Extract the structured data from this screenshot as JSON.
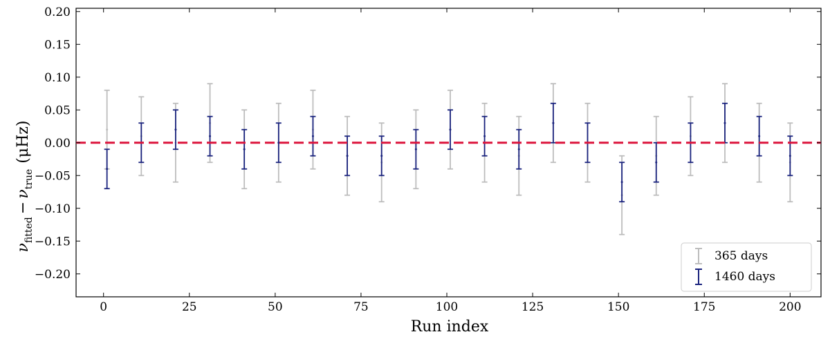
{
  "chart_data": {
    "type": "scatter",
    "title": "",
    "xlabel": "Run index",
    "ylabel": "ν_fitted − ν_true (μHz)",
    "ylabel_parts": {
      "sym": "ν",
      "sub1": "fitted",
      "minus": "−",
      "sub2": "true",
      "unit": "(μHz)"
    },
    "xlim": [
      -8,
      209
    ],
    "ylim": [
      -0.235,
      0.205
    ],
    "xticks": [
      0,
      25,
      50,
      75,
      100,
      125,
      150,
      175,
      200
    ],
    "xtick_labels": [
      "0",
      "25",
      "50",
      "75",
      "100",
      "125",
      "150",
      "175",
      "200"
    ],
    "yticks": [
      -0.2,
      -0.15,
      -0.1,
      -0.05,
      0.0,
      0.05,
      0.1,
      0.15,
      0.2
    ],
    "ytick_labels": [
      "−0.20",
      "−0.15",
      "−0.10",
      "−0.05",
      "0.00",
      "0.05",
      "0.10",
      "0.15",
      "0.20"
    ],
    "reference_line": {
      "y": 0.0,
      "color": "#dc143c",
      "style": "dashed"
    },
    "grid": false,
    "legend_position": "bottom-right",
    "series": [
      {
        "name": "365 days",
        "color": "#bdbdbd",
        "x": [
          1,
          11,
          21,
          31,
          41,
          51,
          61,
          71,
          81,
          91,
          101,
          111,
          121,
          131,
          141,
          151,
          161,
          171,
          181,
          191,
          200
        ],
        "y": [
          0.02,
          0.01,
          0.0,
          0.03,
          -0.01,
          0.0,
          0.02,
          -0.02,
          -0.03,
          -0.01,
          0.02,
          0.0,
          -0.02,
          0.03,
          0.0,
          -0.08,
          -0.02,
          0.01,
          0.03,
          0.0,
          -0.03
        ],
        "err": [
          0.06,
          0.06,
          0.06,
          0.06,
          0.06,
          0.06,
          0.06,
          0.06,
          0.06,
          0.06,
          0.06,
          0.06,
          0.06,
          0.06,
          0.06,
          0.06,
          0.06,
          0.06,
          0.06,
          0.06,
          0.06
        ]
      },
      {
        "name": "1460 days",
        "color": "#1a237e",
        "x": [
          1,
          11,
          21,
          31,
          41,
          51,
          61,
          71,
          81,
          91,
          101,
          111,
          121,
          131,
          141,
          151,
          161,
          171,
          181,
          191,
          200
        ],
        "y": [
          -0.04,
          0.0,
          0.02,
          0.01,
          -0.01,
          0.0,
          0.01,
          -0.02,
          -0.02,
          -0.01,
          0.02,
          0.01,
          -0.01,
          0.03,
          0.0,
          -0.06,
          -0.03,
          0.0,
          0.03,
          0.01,
          -0.02
        ],
        "err": [
          0.03,
          0.03,
          0.03,
          0.03,
          0.03,
          0.03,
          0.03,
          0.03,
          0.03,
          0.03,
          0.03,
          0.03,
          0.03,
          0.03,
          0.03,
          0.03,
          0.03,
          0.03,
          0.03,
          0.03,
          0.03
        ]
      }
    ]
  }
}
